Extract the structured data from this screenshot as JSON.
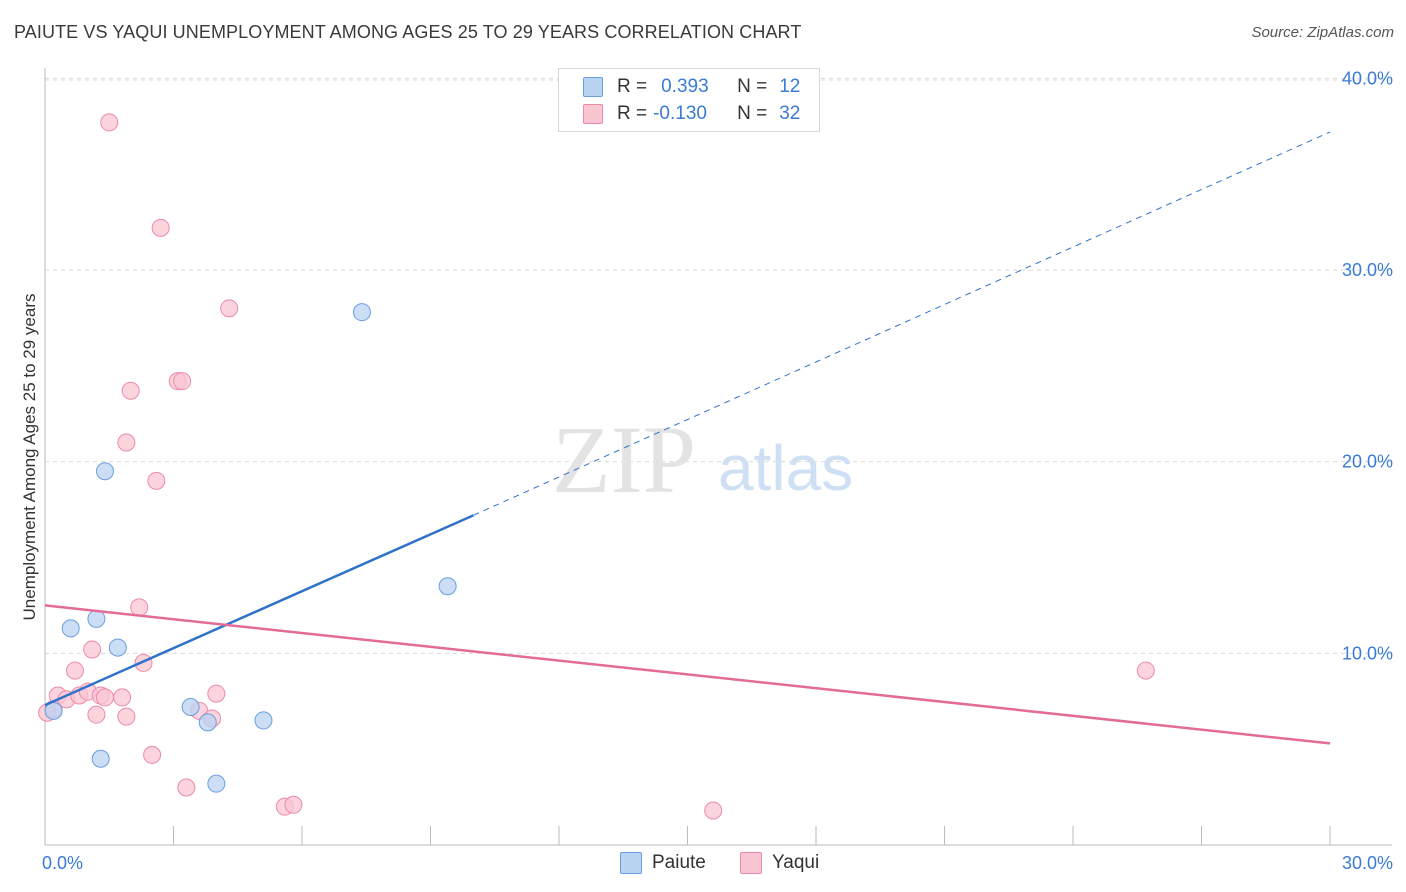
{
  "title": "PAIUTE VS YAQUI UNEMPLOYMENT AMONG AGES 25 TO 29 YEARS CORRELATION CHART",
  "source": "Source: ZipAtlas.com",
  "watermark": {
    "zip": "ZIP",
    "atlas": "atlas"
  },
  "legend_top": {
    "rows": [
      {
        "r_label": "R =",
        "r_value": "0.393",
        "n_label": "N =",
        "n_value": "12"
      },
      {
        "r_label": "R =",
        "r_value": "-0.130",
        "n_label": "N =",
        "n_value": "32"
      }
    ]
  },
  "colors": {
    "paiute_fill": "#b9d3f3",
    "paiute_stroke": "#6a9ee0",
    "paiute_line": "#2f72c9",
    "yaqui_fill": "#f9c5d3",
    "yaqui_stroke": "#ec8aa7",
    "yaqui_line": "#e46b95",
    "tick_label": "#3a7bd5",
    "grid": "#d9d9d9"
  },
  "chart_data": {
    "type": "scatter",
    "title": "PAIUTE VS YAQUI UNEMPLOYMENT AMONG AGES 25 TO 29 YEARS CORRELATION CHART",
    "xlabel": "",
    "ylabel": "Unemployment Among Ages 25 to 29 years",
    "xlim": [
      0,
      30
    ],
    "ylim": [
      0,
      42
    ],
    "x_tick_labels": [
      "0.0%",
      "30.0%"
    ],
    "y_ticks": [
      10,
      20,
      30,
      40
    ],
    "y_tick_labels": [
      "10.0%",
      "20.0%",
      "30.0%",
      "40.0%"
    ],
    "grid": true,
    "legend": [
      "Paiute",
      "Yaqui"
    ],
    "series": [
      {
        "name": "Paiute",
        "r": 0.393,
        "n": 12,
        "points": [
          [
            0.2,
            7.0
          ],
          [
            0.6,
            11.3
          ],
          [
            1.2,
            11.8
          ],
          [
            1.4,
            19.5
          ],
          [
            1.7,
            10.3
          ],
          [
            3.4,
            7.2
          ],
          [
            3.8,
            6.4
          ],
          [
            4.0,
            3.2
          ],
          [
            5.1,
            6.5
          ],
          [
            7.4,
            27.8
          ],
          [
            9.4,
            13.5
          ],
          [
            1.3,
            4.5
          ]
        ],
        "trend": {
          "x0": 0,
          "y0": 7.3,
          "x1": 10.0,
          "y1": 17.2,
          "dash_to_x": 30,
          "dash_to_y": 37.2
        }
      },
      {
        "name": "Yaqui",
        "r": -0.13,
        "n": 32,
        "points": [
          [
            0.05,
            6.9
          ],
          [
            0.2,
            7.1
          ],
          [
            0.3,
            7.8
          ],
          [
            0.5,
            7.6
          ],
          [
            0.7,
            9.1
          ],
          [
            0.8,
            7.8
          ],
          [
            1.0,
            8.0
          ],
          [
            1.1,
            10.2
          ],
          [
            1.2,
            6.8
          ],
          [
            1.3,
            7.8
          ],
          [
            1.4,
            7.7
          ],
          [
            1.5,
            37.7
          ],
          [
            1.8,
            7.7
          ],
          [
            1.9,
            6.7
          ],
          [
            2.0,
            23.7
          ],
          [
            2.2,
            12.4
          ],
          [
            2.3,
            9.5
          ],
          [
            2.5,
            4.7
          ],
          [
            2.6,
            19.0
          ],
          [
            2.7,
            32.2
          ],
          [
            3.1,
            24.2
          ],
          [
            3.2,
            24.2
          ],
          [
            3.3,
            3.0
          ],
          [
            3.6,
            7.0
          ],
          [
            3.9,
            6.6
          ],
          [
            4.0,
            7.9
          ],
          [
            4.3,
            28.0
          ],
          [
            5.6,
            2.0
          ],
          [
            5.8,
            2.1
          ],
          [
            15.6,
            1.8
          ],
          [
            25.7,
            9.1
          ],
          [
            1.9,
            21.0
          ]
        ],
        "trend": {
          "x0": 0,
          "y0": 12.5,
          "x1": 30,
          "y1": 5.3
        }
      }
    ]
  }
}
